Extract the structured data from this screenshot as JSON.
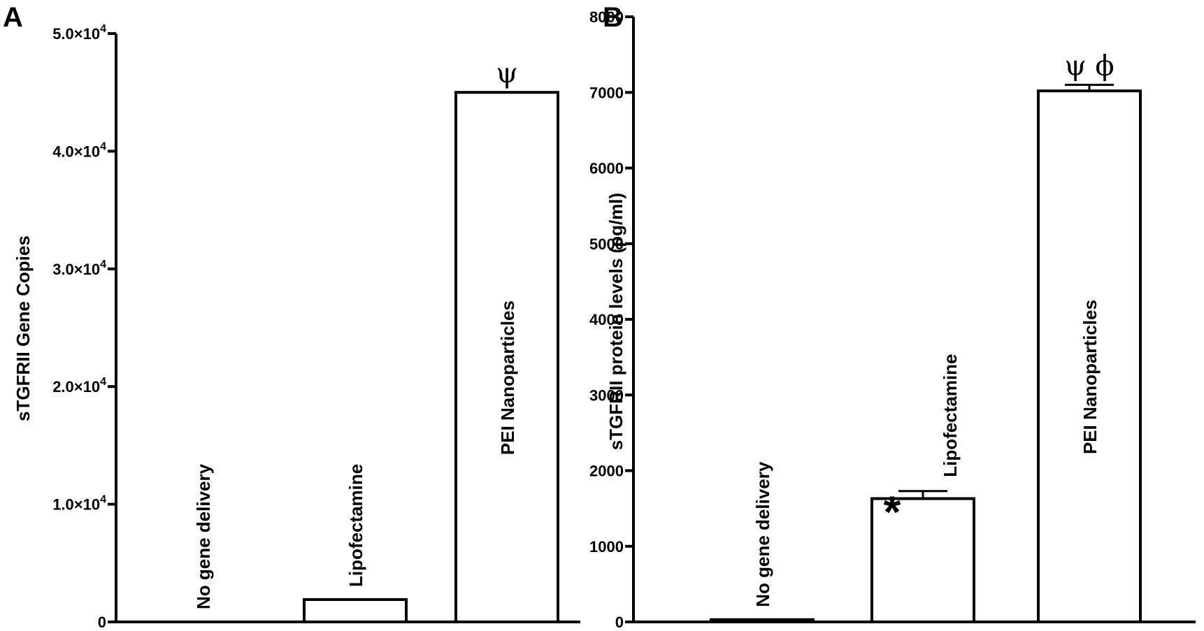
{
  "chart_data": [
    {
      "type": "bar",
      "panel": "A",
      "ylabel": "sTGFRII Gene Copies",
      "ylim": [
        0,
        50000
      ],
      "yticks": [
        {
          "value": 0,
          "label": "0"
        },
        {
          "value": 10000,
          "label": "1.0×10",
          "exp": "4"
        },
        {
          "value": 20000,
          "label": "2.0×10",
          "exp": "4"
        },
        {
          "value": 30000,
          "label": "3.0×10",
          "exp": "4"
        },
        {
          "value": 40000,
          "label": "4.0×10",
          "exp": "4"
        },
        {
          "value": 50000,
          "label": "5.0×10",
          "exp": "4"
        }
      ],
      "categories": [
        "No gene delivery",
        "Lipofectamine",
        "PEI Nanoparticles"
      ],
      "values": [
        0,
        1900,
        45000
      ],
      "annotations": [
        "",
        "",
        "ψ"
      ]
    },
    {
      "type": "bar",
      "panel": "B",
      "ylabel": "sTGFRII protein levels (pg/ml)",
      "ylim": [
        0,
        8000
      ],
      "yticks": [
        {
          "value": 0,
          "label": "0"
        },
        {
          "value": 1000,
          "label": "1000"
        },
        {
          "value": 2000,
          "label": "2000"
        },
        {
          "value": 3000,
          "label": "3000"
        },
        {
          "value": 4000,
          "label": "4000"
        },
        {
          "value": 5000,
          "label": "5000"
        },
        {
          "value": 6000,
          "label": "6000"
        },
        {
          "value": 7000,
          "label": "7000"
        },
        {
          "value": 8000,
          "label": "8000"
        }
      ],
      "categories": [
        "No gene delivery",
        "Lipofectamine",
        "PEI Nanoparticles"
      ],
      "values": [
        30,
        1630,
        7020
      ],
      "errors": [
        0,
        100,
        80
      ],
      "annotations": [
        "",
        "*",
        "ψ ϕ"
      ]
    }
  ]
}
